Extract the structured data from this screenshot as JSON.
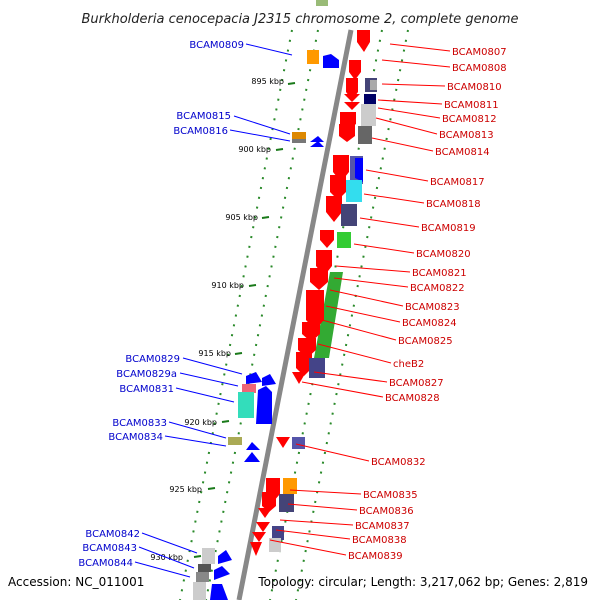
{
  "title": "Burkholderia cenocepacia J2315 chromosome 2, complete genome",
  "footer": {
    "accession": "Accession: NC_011001",
    "summary": "Topology: circular; Length: 3,217,062 bp; Genes: 2,819"
  },
  "colors": {
    "backbone": "#888888",
    "guide_dots": "#2a8a2a",
    "left_labels": "#0000cc",
    "right_labels": "#cc0000",
    "leader_left": "#0000ff",
    "leader_right": "#ff0000"
  },
  "ticks": [
    "895 kbp",
    "900 kbp",
    "905 kbp",
    "910 kbp",
    "915 kbp",
    "920 kbp",
    "925 kbp",
    "930 kbp"
  ],
  "left_labels": [
    "BCAM0809",
    "BCAM0815",
    "BCAM0816",
    "BCAM0829",
    "BCAM0829a",
    "BCAM0831",
    "BCAM0833",
    "BCAM0834",
    "BCAM0842",
    "BCAM0843",
    "BCAM0844"
  ],
  "right_labels": [
    "BCAM0807",
    "BCAM0808",
    "BCAM0810",
    "BCAM0811",
    "BCAM0812",
    "BCAM0813",
    "BCAM0814",
    "BCAM0817",
    "BCAM0818",
    "BCAM0819",
    "BCAM0820",
    "BCAM0821",
    "BCAM0822",
    "BCAM0823",
    "BCAM0824",
    "BCAM0825",
    "cheB2",
    "BCAM0827",
    "BCAM0828",
    "BCAM0832",
    "BCAM0835",
    "BCAM0836",
    "BCAM0837",
    "BCAM0838",
    "BCAM0839"
  ]
}
